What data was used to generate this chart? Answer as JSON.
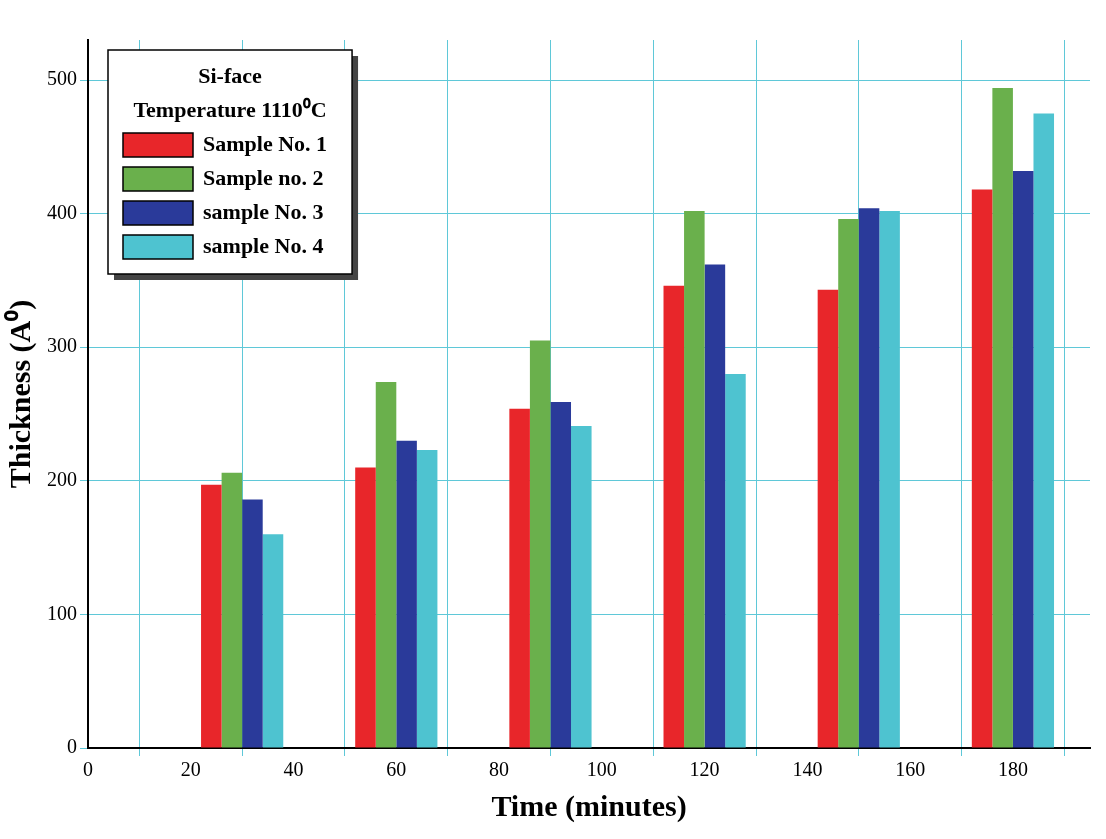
{
  "chart_data": {
    "type": "bar",
    "xlabel": "Time (minutes)",
    "ylabel": "Thickness (A⁰)",
    "legend_title": "Si-face\nTemperature 1110⁰C",
    "x": [
      30,
      60,
      90,
      120,
      150,
      180
    ],
    "series": [
      {
        "name": "Sample No. 1",
        "color": "#e8262a",
        "values": [
          197,
          210,
          254,
          346,
          343,
          418
        ]
      },
      {
        "name": "Sample no. 2",
        "color": "#6ab04c",
        "values": [
          206,
          274,
          305,
          402,
          396,
          494
        ]
      },
      {
        "name": "sample No. 3",
        "color": "#2a3a9a",
        "values": [
          186,
          230,
          259,
          362,
          404,
          432
        ]
      },
      {
        "name": "sample No. 4",
        "color": "#4ec3d0",
        "values": [
          160,
          223,
          241,
          280,
          402,
          475
        ]
      }
    ],
    "xlim": [
      0,
      195
    ],
    "xticks": [
      0,
      20,
      40,
      60,
      80,
      100,
      120,
      140,
      160,
      180
    ],
    "ylim": [
      0,
      530
    ],
    "yticks": [
      0,
      100,
      200,
      300,
      400,
      500
    ],
    "grid": true,
    "legend": "top left"
  }
}
